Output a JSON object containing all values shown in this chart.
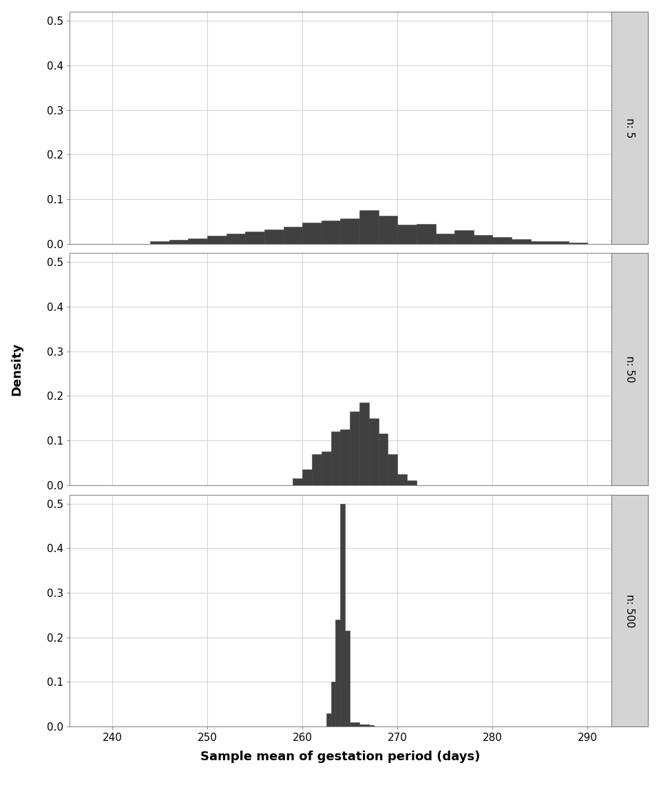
{
  "panels": [
    {
      "label": "n: 5",
      "bar_lefts": [
        244,
        246,
        248,
        250,
        252,
        254,
        256,
        258,
        260,
        262,
        264,
        266,
        268,
        270,
        272,
        274,
        276,
        278,
        280,
        282,
        284,
        286,
        288
      ],
      "bar_widths": [
        2,
        2,
        2,
        2,
        2,
        2,
        2,
        2,
        2,
        2,
        2,
        2,
        2,
        2,
        2,
        2,
        2,
        2,
        2,
        2,
        2,
        2,
        2
      ],
      "bar_heights": [
        0.005,
        0.008,
        0.012,
        0.018,
        0.022,
        0.027,
        0.032,
        0.038,
        0.047,
        0.052,
        0.056,
        0.075,
        0.063,
        0.042,
        0.045,
        0.022,
        0.03,
        0.02,
        0.015,
        0.01,
        0.005,
        0.005,
        0.003
      ]
    },
    {
      "label": "n: 50",
      "bar_lefts": [
        259,
        260,
        261,
        262,
        263,
        264,
        265,
        266,
        267,
        268,
        269,
        270,
        271
      ],
      "bar_widths": [
        1,
        1,
        1,
        1,
        1,
        1,
        1,
        1,
        1,
        1,
        1,
        1,
        1
      ],
      "bar_heights": [
        0.015,
        0.035,
        0.07,
        0.075,
        0.12,
        0.125,
        0.165,
        0.185,
        0.15,
        0.115,
        0.07,
        0.025,
        0.01
      ]
    },
    {
      "label": "n: 500",
      "bar_lefts": [
        262.5,
        263.0,
        263.5,
        264.0,
        264.5,
        265.0,
        265.5,
        266.0,
        266.5,
        267.0
      ],
      "bar_widths": [
        0.5,
        0.5,
        0.5,
        0.5,
        0.5,
        0.5,
        0.5,
        0.5,
        0.5,
        0.5
      ],
      "bar_heights": [
        0.03,
        0.1,
        0.24,
        0.5,
        0.215,
        0.01,
        0.01,
        0.005,
        0.005,
        0.003
      ]
    }
  ],
  "xlim": [
    235.5,
    292.5
  ],
  "ylim": [
    0.0,
    0.52
  ],
  "yticks": [
    0.0,
    0.1,
    0.2,
    0.3,
    0.4,
    0.5
  ],
  "xticks": [
    240,
    250,
    260,
    270,
    280,
    290
  ],
  "xlabel": "Sample mean of gestation period (days)",
  "ylabel": "Density",
  "bar_color": "#404040",
  "bar_edgecolor": "#404040",
  "background_color": "#ffffff",
  "grid_color": "#d0d0d0",
  "strip_bg_color": "#d4d4d4",
  "strip_border_color": "#7a7a7a",
  "strip_text_color": "#000000",
  "figsize": [
    9.6,
    11.52
  ],
  "dpi": 100
}
